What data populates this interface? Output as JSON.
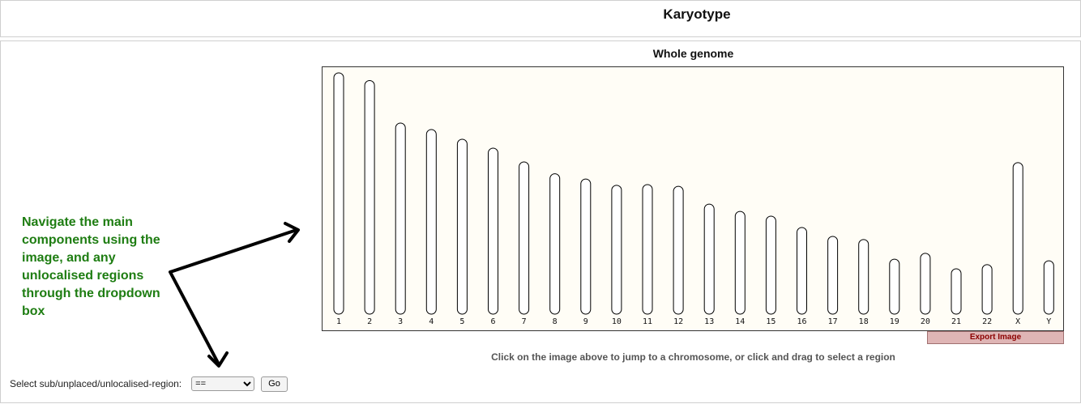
{
  "header": {
    "title": "Karyotype"
  },
  "main": {
    "section_title": "Whole genome",
    "instruction": "Click on the image above to jump to a chromosome, or click and drag to select a region",
    "export_label": "Export Image"
  },
  "annotation": {
    "text": "Navigate the main components using the image, and any unlocalised regions through the dropdown box"
  },
  "region_selector": {
    "label": "Select sub/unplaced/unlocalised-region:",
    "selected": "==",
    "go_label": "Go"
  },
  "chromosomes": [
    {
      "label": "1",
      "relative_length": 1.0
    },
    {
      "label": "2",
      "relative_length": 0.968
    },
    {
      "label": "3",
      "relative_length": 0.792
    },
    {
      "label": "4",
      "relative_length": 0.765
    },
    {
      "label": "5",
      "relative_length": 0.725
    },
    {
      "label": "6",
      "relative_length": 0.688
    },
    {
      "label": "7",
      "relative_length": 0.631
    },
    {
      "label": "8",
      "relative_length": 0.582
    },
    {
      "label": "9",
      "relative_length": 0.56
    },
    {
      "label": "10",
      "relative_length": 0.534
    },
    {
      "label": "11",
      "relative_length": 0.537
    },
    {
      "label": "12",
      "relative_length": 0.53
    },
    {
      "label": "13",
      "relative_length": 0.456
    },
    {
      "label": "14",
      "relative_length": 0.426
    },
    {
      "label": "15",
      "relative_length": 0.406
    },
    {
      "label": "16",
      "relative_length": 0.359
    },
    {
      "label": "17",
      "relative_length": 0.322
    },
    {
      "label": "18",
      "relative_length": 0.309
    },
    {
      "label": "19",
      "relative_length": 0.228
    },
    {
      "label": "20",
      "relative_length": 0.252
    },
    {
      "label": "21",
      "relative_length": 0.188
    },
    {
      "label": "22",
      "relative_length": 0.205
    },
    {
      "label": "X",
      "relative_length": 0.628
    },
    {
      "label": "Y",
      "relative_length": 0.221
    }
  ],
  "colors": {
    "karyotype_bg": "#fffdf6",
    "annotation_green": "#1e7d12",
    "export_bg": "#dfb5b5",
    "export_text": "#8b0000"
  }
}
